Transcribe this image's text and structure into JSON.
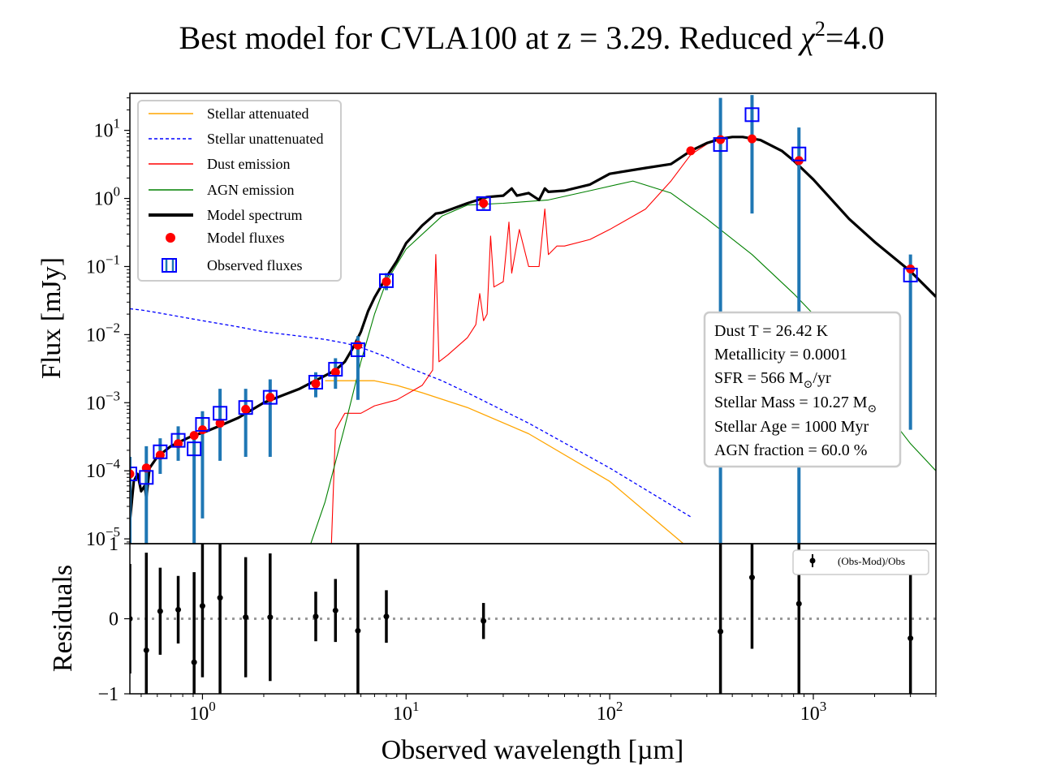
{
  "title": {
    "prefix": "Best model for CVLA100 at z = 3.29. Reduced ",
    "chi": "χ",
    "sup": "2",
    "suffix": "=4.0"
  },
  "colors": {
    "stellar_att": "#ffa500",
    "stellar_unatt": "#0000ff",
    "dust": "#ff0000",
    "agn": "#008000",
    "model": "#000000",
    "model_flux": "#ff0000",
    "obs_box": "#0000ff",
    "obs_err": "#1f77b4",
    "residual": "#000000",
    "zero_line": "#999999"
  },
  "chart_data": [
    {
      "type": "line",
      "panel": "sed",
      "xlabel": "Observed wavelength [µm]",
      "ylabel": "Flux [mJy]",
      "xscale": "log",
      "yscale": "log",
      "xlim": [
        0.44,
        4000
      ],
      "ylim": [
        8.5e-06,
        35
      ],
      "x_ticks": [
        {
          "value": 1,
          "base": "10",
          "exp": "0"
        },
        {
          "value": 10,
          "base": "10",
          "exp": "1"
        },
        {
          "value": 100,
          "base": "10",
          "exp": "2"
        },
        {
          "value": 1000,
          "base": "10",
          "exp": "3"
        }
      ],
      "y_ticks": [
        {
          "value": 10,
          "base": "10",
          "exp": "1"
        },
        {
          "value": 1,
          "base": "10",
          "exp": "0"
        },
        {
          "value": 0.1,
          "base": "10",
          "exp": "−1"
        },
        {
          "value": 0.01,
          "base": "10",
          "exp": "−2"
        },
        {
          "value": 0.001,
          "base": "10",
          "exp": "−3"
        },
        {
          "value": 0.0001,
          "base": "10",
          "exp": "−4"
        },
        {
          "value": 1e-05,
          "base": "10",
          "exp": "−5"
        }
      ],
      "legend": {
        "placement": "top-left",
        "entries": [
          "Stellar attenuated",
          "Stellar unattenuated",
          "Dust emission",
          "AGN emission",
          "Model spectrum",
          "Model fluxes",
          "Observed fluxes"
        ]
      },
      "series": [
        {
          "name": "Stellar attenuated",
          "x": [
            4.0,
            4.5,
            5.5,
            7,
            9,
            12,
            20,
            40,
            100,
            230
          ],
          "y": [
            0.0021,
            0.0021,
            0.0021,
            0.0021,
            0.0018,
            0.0014,
            0.00085,
            0.00035,
            7e-05,
            8.5e-06
          ]
        },
        {
          "name": "Stellar unattenuated",
          "x": [
            0.44,
            0.5,
            0.6,
            0.8,
            1.0,
            1.5,
            2.0,
            3.0,
            4.0,
            5.0,
            6.0,
            8.0,
            10,
            15,
            20,
            40,
            100,
            250
          ],
          "y": [
            0.024,
            0.023,
            0.021,
            0.018,
            0.016,
            0.013,
            0.011,
            0.0095,
            0.0085,
            0.0075,
            0.0065,
            0.0047,
            0.0034,
            0.0021,
            0.0014,
            0.0005,
            0.00011,
            2.1e-05
          ]
        },
        {
          "name": "Dust emission",
          "x": [
            4.3,
            4.5,
            5,
            6,
            7,
            9,
            12,
            13.5,
            14,
            14.5,
            16,
            20,
            22,
            23,
            24,
            25,
            26,
            27,
            30,
            32,
            33,
            36,
            40,
            45,
            48,
            50,
            55,
            60,
            80,
            100,
            150,
            200,
            250,
            330
          ],
          "y": [
            8.5e-06,
            0.0004,
            0.0007,
            0.0007,
            0.0009,
            0.0011,
            0.0018,
            0.003,
            0.15,
            0.004,
            0.005,
            0.009,
            0.014,
            0.04,
            0.016,
            0.02,
            0.28,
            0.05,
            0.06,
            0.45,
            0.08,
            0.35,
            0.1,
            0.1,
            0.7,
            0.15,
            0.2,
            0.2,
            0.25,
            0.35,
            0.7,
            1.8,
            4.4,
            7.5
          ]
        },
        {
          "name": "AGN emission",
          "x": [
            3.4,
            4,
            5,
            6,
            7,
            8,
            10,
            15,
            20,
            30,
            50,
            80,
            130,
            200,
            300,
            500,
            800,
            1000,
            1500,
            2000,
            3000,
            4000
          ],
          "y": [
            8.5e-06,
            3.5e-05,
            0.00045,
            0.004,
            0.02,
            0.06,
            0.18,
            0.55,
            0.8,
            0.85,
            0.95,
            1.3,
            1.8,
            1.2,
            0.5,
            0.15,
            0.04,
            0.02,
            0.004,
            0.0012,
            0.00025,
            0.0001
          ]
        },
        {
          "name": "Model spectrum",
          "x": [
            0.44,
            0.46,
            0.48,
            0.5,
            0.52,
            0.53,
            0.55,
            0.6,
            0.7,
            0.8,
            0.9,
            1.0,
            1.2,
            1.5,
            2.0,
            2.5,
            3.0,
            4.0,
            4.5,
            5.0,
            5.5,
            6.0,
            6.5,
            7.0,
            8.0,
            9.0,
            10,
            12,
            14,
            15,
            20,
            25,
            30,
            33,
            35,
            40,
            45,
            48,
            50,
            60,
            80,
            100,
            150,
            200,
            250,
            300,
            350,
            400,
            450,
            550,
            700,
            800,
            1000,
            1500,
            2000,
            3000,
            4000
          ],
          "y": [
            1.8e-05,
            7e-05,
            9e-05,
            5e-05,
            6e-05,
            4e-05,
            0.00011,
            0.00016,
            0.00023,
            0.00028,
            0.00033,
            0.00036,
            0.00045,
            0.0006,
            0.001,
            0.0013,
            0.0016,
            0.0025,
            0.003,
            0.004,
            0.0065,
            0.011,
            0.022,
            0.035,
            0.07,
            0.12,
            0.22,
            0.4,
            0.6,
            0.62,
            0.85,
            1.05,
            1.1,
            1.4,
            1.1,
            1.2,
            0.95,
            1.4,
            1.25,
            1.3,
            1.6,
            2.3,
            2.8,
            3.2,
            5.0,
            6.5,
            7.5,
            8.0,
            8.0,
            7.2,
            5.0,
            3.6,
            1.9,
            0.5,
            0.23,
            0.085,
            0.036
          ]
        },
        {
          "name": "Model fluxes",
          "x": [
            0.44,
            0.53,
            0.62,
            0.76,
            0.91,
            1.0,
            1.22,
            1.63,
            2.15,
            3.6,
            4.5,
            5.8,
            8.0,
            24,
            250,
            350,
            500,
            850,
            3000
          ],
          "y": [
            9e-05,
            0.00011,
            0.00017,
            0.00025,
            0.00033,
            0.0004,
            0.0005,
            0.0008,
            0.0012,
            0.0019,
            0.0028,
            0.007,
            0.06,
            0.85,
            5.0,
            7.3,
            7.5,
            3.6,
            0.092
          ]
        },
        {
          "name": "Observed fluxes",
          "x": [
            0.44,
            0.53,
            0.62,
            0.76,
            0.91,
            1.0,
            1.22,
            1.63,
            2.15,
            3.6,
            4.5,
            5.8,
            8.0,
            24,
            350,
            500,
            850,
            3000
          ],
          "y": [
            9e-05,
            8e-05,
            0.00019,
            0.00028,
            0.00021,
            0.00048,
            0.0007,
            0.00085,
            0.0012,
            0.002,
            0.0031,
            0.006,
            0.062,
            0.84,
            6.2,
            17,
            4.5,
            0.075
          ],
          "y_low": [
            8.5e-06,
            8.5e-06,
            9e-05,
            0.00014,
            8.5e-06,
            2e-05,
            0.00014,
            0.00016,
            0.00016,
            0.0012,
            0.0016,
            0.0011,
            0.045,
            0.7,
            8.5e-06,
            0.6,
            8.5e-06,
            0.0004
          ],
          "y_high": [
            0.00016,
            0.00023,
            0.0003,
            0.00045,
            0.00032,
            0.00075,
            0.0016,
            0.0016,
            0.0022,
            0.0028,
            0.0045,
            0.0095,
            0.08,
            1.0,
            30,
            33,
            11,
            0.15
          ]
        }
      ],
      "annotation": [
        {
          "label": "Dust T = ",
          "value": "26.42 K"
        },
        {
          "label": "Metallicity = ",
          "value": "0.0001"
        },
        {
          "label": "SFR = ",
          "value": "566 M",
          "sub": "⊙",
          "tail": "/yr"
        },
        {
          "label": "Stellar Mass = ",
          "value": "10.27 M",
          "sub": "⊙",
          "tail": ""
        },
        {
          "label": "Stellar Age = ",
          "value": "1000 Myr"
        },
        {
          "label": "AGN fraction = ",
          "value": "60.0 %"
        }
      ]
    },
    {
      "type": "scatter",
      "panel": "residuals",
      "ylabel": "Residuals",
      "xscale": "log",
      "ylim": [
        -1,
        1
      ],
      "y_ticks": [
        {
          "value": 1,
          "label": "1"
        },
        {
          "value": 0,
          "label": "0"
        },
        {
          "value": -1,
          "label": "−1"
        }
      ],
      "legend": {
        "placement": "top-right",
        "entries": [
          "(Obs-Mod)/Obs"
        ]
      },
      "series": [
        {
          "name": "(Obs-Mod)/Obs",
          "x": [
            0.44,
            0.53,
            0.62,
            0.76,
            0.91,
            1.0,
            1.22,
            1.63,
            2.15,
            3.6,
            4.5,
            5.8,
            8.0,
            24,
            350,
            500,
            850,
            3000
          ],
          "y": [
            0.0,
            -0.42,
            0.1,
            0.12,
            -0.58,
            0.17,
            0.28,
            0.02,
            0.02,
            0.03,
            0.11,
            -0.16,
            0.03,
            -0.03,
            -0.17,
            0.55,
            0.2,
            -0.26
          ],
          "err": [
            0.73,
            1.3,
            0.58,
            0.45,
            1.2,
            0.95,
            1.3,
            0.8,
            0.85,
            0.33,
            0.42,
            1.3,
            0.35,
            0.24,
            2.0,
            0.95,
            2.0,
            1.0
          ]
        }
      ]
    }
  ]
}
